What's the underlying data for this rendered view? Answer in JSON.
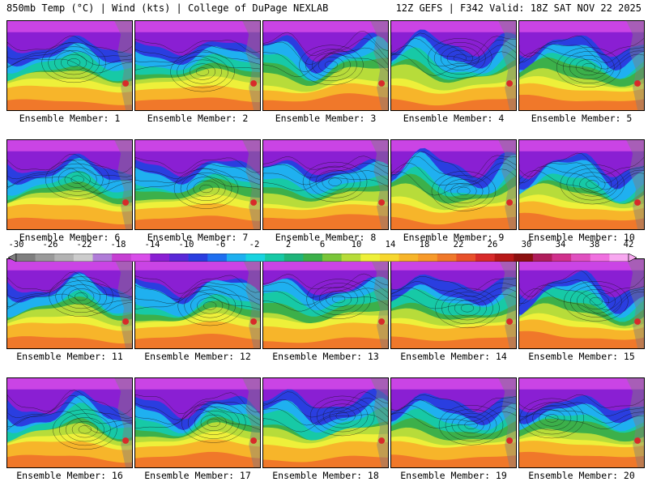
{
  "header": {
    "left": "850mb Temp (°C) | Wind (kts) | College of DuPage NEXLAB",
    "right": "12Z GEFS | F342 Valid: 18Z SAT NOV 22 2025"
  },
  "panel_label_prefix": "Ensemble Member:",
  "members": [
    {
      "label": "Ensemble Member: 1"
    },
    {
      "label": "Ensemble Member: 2"
    },
    {
      "label": "Ensemble Member: 3"
    },
    {
      "label": "Ensemble Member: 4"
    },
    {
      "label": "Ensemble Member: 5"
    },
    {
      "label": "Ensemble Member: 6"
    },
    {
      "label": "Ensemble Member: 7"
    },
    {
      "label": "Ensemble Member: 8"
    },
    {
      "label": "Ensemble Member: 9"
    },
    {
      "label": "Ensemble Member: 10"
    },
    {
      "label": "Ensemble Member: 11"
    },
    {
      "label": "Ensemble Member: 12"
    },
    {
      "label": "Ensemble Member: 13"
    },
    {
      "label": "Ensemble Member: 14"
    },
    {
      "label": "Ensemble Member: 15"
    },
    {
      "label": "Ensemble Member: 16"
    },
    {
      "label": "Ensemble Member: 17"
    },
    {
      "label": "Ensemble Member: 18"
    },
    {
      "label": "Ensemble Member: 19"
    },
    {
      "label": "Ensemble Member: 20"
    }
  ],
  "colorbar": {
    "ticks": [
      "-30",
      "-26",
      "-22",
      "-18",
      "-14",
      "-10",
      "-6",
      "-2",
      "2",
      "6",
      "10",
      "14",
      "18",
      "22",
      "26",
      "30",
      "34",
      "38",
      "42"
    ],
    "colors": [
      "#7f7f7f",
      "#9a9a9a",
      "#b3b3b3",
      "#cccccc",
      "#b07cd8",
      "#c63fd3",
      "#d94dea",
      "#8a1fd3",
      "#5a28d8",
      "#2a3ee0",
      "#1f6ff0",
      "#1fb0f0",
      "#19d3e0",
      "#17c9a6",
      "#1fb47a",
      "#3cb04a",
      "#7ac63a",
      "#b7dc3a",
      "#eef03a",
      "#f7d72e",
      "#f7b52a",
      "#f79a2a",
      "#f0782a",
      "#e8502a",
      "#d82a2a",
      "#b81818",
      "#8c1010",
      "#b01d5c",
      "#d0308c",
      "#e050c0",
      "#f070e0",
      "#f8a8f0"
    ],
    "min": -30,
    "max": 42
  },
  "colors": {
    "cold": "#8a1fd3",
    "cool": "#1fb0f0",
    "mild": "#3cb04a",
    "warm": "#f7b52a",
    "hot": "#f0782a"
  }
}
